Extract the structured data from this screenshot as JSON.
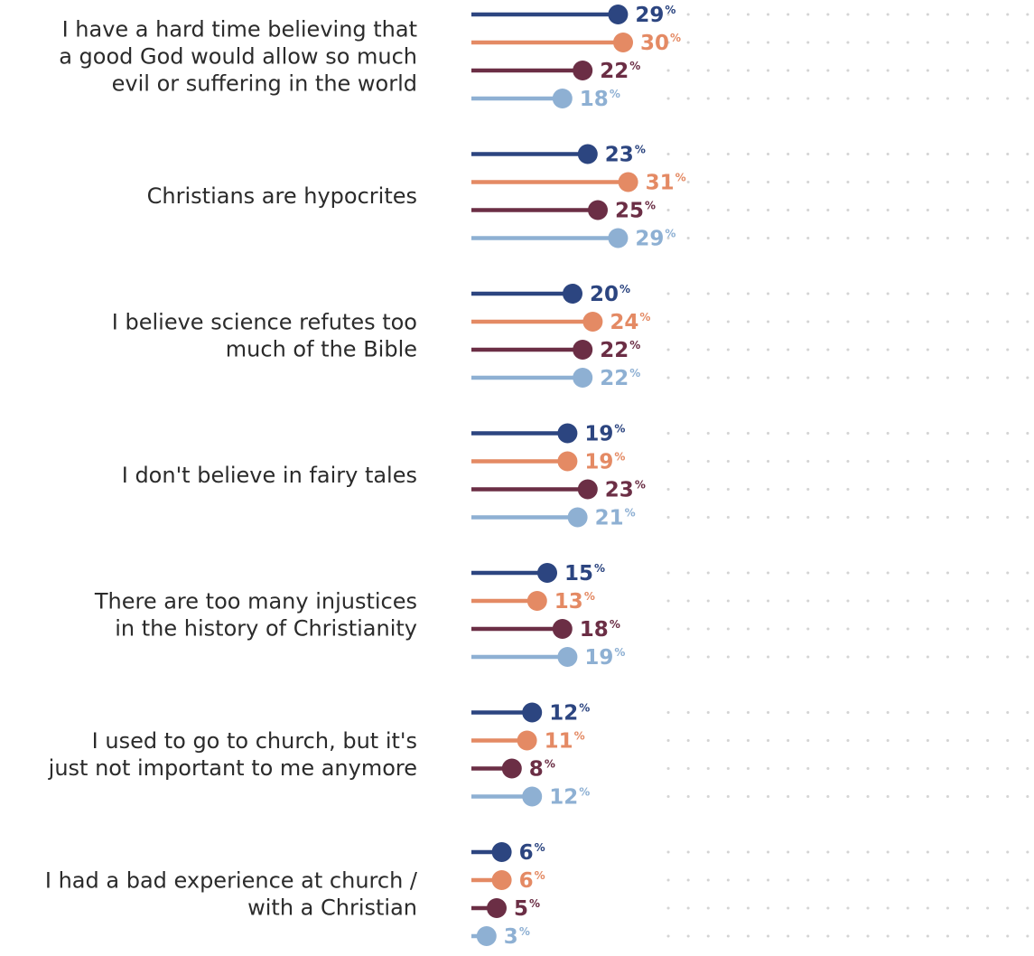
{
  "chart_data": {
    "type": "lollipop",
    "orientation": "horizontal",
    "xlim": [
      0,
      60
    ],
    "grid": "dotted",
    "legend": "none",
    "categories": [
      [
        "I have a hard time believing that",
        "a good God would allow so much",
        "evil or suffering in the world"
      ],
      [
        "Christians are hypocrites"
      ],
      [
        "I believe science refutes too",
        "much of the Bible"
      ],
      [
        "I don't believe in fairy tales"
      ],
      [
        "There are too many injustices",
        "in the history of Christianity"
      ],
      [
        "I used to go to church, but it's",
        "just not important to me anymore"
      ],
      [
        "I had a bad experience at church /",
        "with a Christian"
      ]
    ],
    "series": [
      {
        "color": "#2c4580",
        "values": [
          29,
          23,
          20,
          19,
          15,
          12,
          6
        ]
      },
      {
        "color": "#e48a64",
        "values": [
          30,
          31,
          24,
          19,
          13,
          11,
          6
        ]
      },
      {
        "color": "#6b2e45",
        "values": [
          22,
          25,
          22,
          23,
          18,
          8,
          5
        ]
      },
      {
        "color": "#8eb0d3",
        "values": [
          18,
          29,
          22,
          21,
          19,
          12,
          3
        ]
      }
    ],
    "value_suffix": "%"
  }
}
